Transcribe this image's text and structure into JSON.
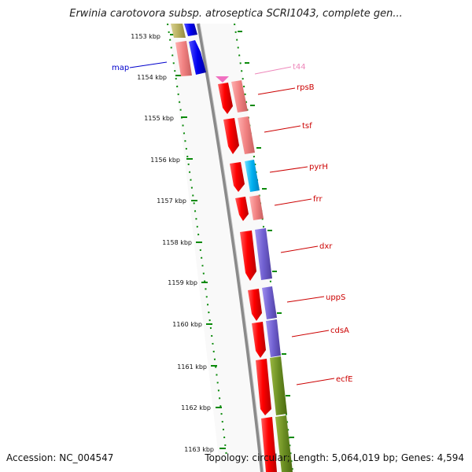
{
  "title": "Erwinia carotovora subsp. atroseptica SCRI1043, complete gen...",
  "footer": {
    "accession": "Accession: NC_004547",
    "summary": "Topology: circular; Length: 5,064,019 bp; Genes: 4,594"
  },
  "colors": {
    "backbone": "#8a8a8a",
    "tick": "#0a8a0a",
    "forward_strand": "#ff1a1a",
    "label_red": "#cc0000",
    "label_blue": "#0000cc",
    "label_pink": "#ee88bb"
  },
  "kbp_ticks": [
    "1153 kbp",
    "1154 kbp",
    "1155 kbp",
    "1156 kbp",
    "1157 kbp",
    "1158 kbp",
    "1159 kbp",
    "1160 kbp",
    "1161 kbp",
    "1162 kbp",
    "1163 kbp"
  ],
  "genes": [
    {
      "name": "map",
      "label_color": "#0000cc"
    },
    {
      "name": "t44",
      "label_color": "#ee88bb"
    },
    {
      "name": "rpsB",
      "label_color": "#cc0000"
    },
    {
      "name": "tsf",
      "label_color": "#cc0000"
    },
    {
      "name": "pyrH",
      "label_color": "#cc0000"
    },
    {
      "name": "frr",
      "label_color": "#cc0000"
    },
    {
      "name": "dxr",
      "label_color": "#cc0000"
    },
    {
      "name": "uppS",
      "label_color": "#cc0000"
    },
    {
      "name": "cdsA",
      "label_color": "#cc0000"
    },
    {
      "name": "ecfE",
      "label_color": "#cc0000"
    }
  ]
}
